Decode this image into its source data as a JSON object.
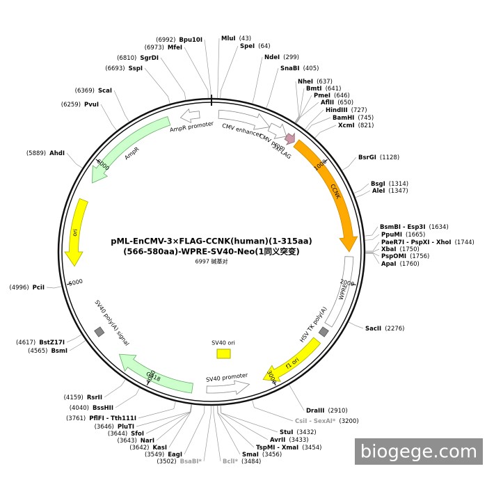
{
  "title": [
    "pML-EnCMV-3×FLAG-CCNK(human)(1-315aa)",
    "(566-580aa)-WPRE-SV40-Neo(1同义突变)"
  ],
  "size": "6997 碱基对",
  "ticks": [
    "1000",
    "2000",
    "3000",
    "4000",
    "5000",
    "6000"
  ],
  "features": [
    {
      "label": "CMV enhancer"
    },
    {
      "label": "CMV prom"
    },
    {
      "label": "3xFLAG"
    },
    {
      "label": "CCNK"
    },
    {
      "label": "WPRE"
    },
    {
      "label": "HSV TK poly(A)"
    },
    {
      "label": "f1 ori"
    },
    {
      "label": "SV40 promoter"
    },
    {
      "label": "SV40 ori"
    },
    {
      "label": "G418"
    },
    {
      "label": "SV40 poly(A) signal"
    },
    {
      "label": "ori"
    },
    {
      "label": "AmpR"
    },
    {
      "label": "AmpR promoter"
    }
  ],
  "sites": [
    {
      "name": "MluI",
      "position": "(43)"
    },
    {
      "name": "SpeI",
      "position": "(64)"
    },
    {
      "name": "NdeI",
      "position": "(299)"
    },
    {
      "name": "SnaBI",
      "position": "(405)"
    },
    {
      "name": "NheI",
      "position": "(637)"
    },
    {
      "name": "BmtI",
      "position": "(641)"
    },
    {
      "name": "PmeI",
      "position": "(646)"
    },
    {
      "name": "AflII",
      "position": "(650)"
    },
    {
      "name": "HindIII",
      "position": "(727)"
    },
    {
      "name": "BamHI",
      "position": "(745)"
    },
    {
      "name": "XcmI",
      "position": "(821)"
    },
    {
      "name": "BsrGI",
      "position": "(1128)"
    },
    {
      "name": "BsgI",
      "position": "(1314)"
    },
    {
      "name": "AleI",
      "position": "(1347)"
    },
    {
      "name": "BsmBI - Esp3I",
      "position": "(1634)"
    },
    {
      "name": "PpuMI",
      "position": "(1665)"
    },
    {
      "name": "PaeR7I - PspXI - XhoI",
      "position": "(1744)"
    },
    {
      "name": "XbaI",
      "position": "(1750)"
    },
    {
      "name": "PspOMI",
      "position": "(1756)"
    },
    {
      "name": "ApaI",
      "position": "(1760)"
    },
    {
      "name": "SacII",
      "position": "(2276)"
    },
    {
      "name": "DraIII",
      "position": "(2910)"
    },
    {
      "name": "CsiI - SexAI*",
      "position": "(3200)"
    },
    {
      "name": "StuI",
      "position": "(3432)"
    },
    {
      "name": "AvrII",
      "position": "(3433)"
    },
    {
      "name": "TspMI - XmaI",
      "position": "(3454)"
    },
    {
      "name": "SmaI",
      "position": "(3456)"
    },
    {
      "name": "BclI*",
      "position": "(3484)"
    },
    {
      "name": "BsaBI*",
      "position": "(3502)"
    },
    {
      "name": "EagI",
      "position": "(3549)"
    },
    {
      "name": "KasI",
      "position": "(3642)"
    },
    {
      "name": "NarI",
      "position": "(3643)"
    },
    {
      "name": "SfoI",
      "position": "(3644)"
    },
    {
      "name": "PluTI",
      "position": "(3646)"
    },
    {
      "name": "PflFI - Tth111I",
      "position": "(3761)"
    },
    {
      "name": "BssHII",
      "position": "(4040)"
    },
    {
      "name": "RsrII",
      "position": "(4159)"
    },
    {
      "name": "BsmI",
      "position": "(4565)"
    },
    {
      "name": "BstZ17I",
      "position": "(4617)"
    },
    {
      "name": "PciI",
      "position": "(4996)"
    },
    {
      "name": "AhdI",
      "position": "(5889)"
    },
    {
      "name": "PvuI",
      "position": "(6259)"
    },
    {
      "name": "ScaI",
      "position": "(6369)"
    },
    {
      "name": "SspI",
      "position": "(6693)"
    },
    {
      "name": "SgrDI",
      "position": "(6810)"
    },
    {
      "name": "MfeI",
      "position": "(6973)"
    },
    {
      "name": "Bpu10I",
      "position": "(6992)"
    }
  ],
  "watermark": "biogege.com"
}
